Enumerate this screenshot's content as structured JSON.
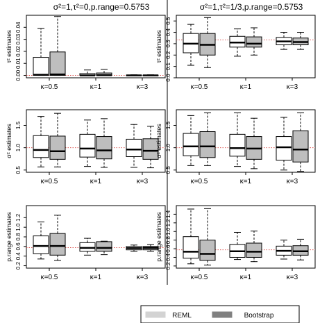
{
  "legend": {
    "position": "bottom",
    "entries": [
      {
        "label": "REML",
        "fill": "#ffffff"
      },
      {
        "label": "Bootstrap",
        "fill": "#bebebe"
      }
    ]
  },
  "colors": {
    "reml_fill": "#ffffff",
    "bootstrap_fill": "#bebebe",
    "true_value_line": "#d9534f",
    "panel_divider": "#000000"
  },
  "columns": [
    {
      "title": "σ²=1,τ²=0,p.range=0.5753"
    },
    {
      "title": "σ²=1,τ²=1/3,p.range=0.5753"
    }
  ],
  "chart_data": [
    {
      "type": "boxplot",
      "column": 0,
      "row": 0,
      "ylabel": "τ² estimates",
      "ylim": [
        -0.002,
        0.05
      ],
      "yticks": [
        0.0,
        0.01,
        0.02,
        0.03,
        0.04
      ],
      "ytick_labels": [
        "0.00",
        "0.01",
        "0.02",
        "0.03",
        "0.04"
      ],
      "true_value": 0.0,
      "categories": [
        "κ=0.5",
        "κ=1",
        "κ=3"
      ],
      "series": [
        {
          "name": "REML",
          "boxes": [
            {
              "whislo": 0.0,
              "q1": 0.0,
              "med": 0.0005,
              "q3": 0.015,
              "whishi": 0.039
            },
            {
              "whislo": 0.0,
              "q1": 0.0,
              "med": 0.0,
              "q3": 0.0015,
              "whishi": 0.0045
            },
            {
              "whislo": 0.0,
              "q1": 0.0,
              "med": 0.0,
              "q3": 0.0002,
              "whishi": 0.0005
            }
          ]
        },
        {
          "name": "Bootstrap",
          "boxes": [
            {
              "whislo": 0.0,
              "q1": 0.0,
              "med": 0.0008,
              "q3": 0.0195,
              "whishi": 0.049
            },
            {
              "whislo": 0.0,
              "q1": 0.0,
              "med": 0.0002,
              "q3": 0.002,
              "whishi": 0.005
            },
            {
              "whislo": 0.0,
              "q1": 0.0,
              "med": 0.0,
              "q3": 0.0002,
              "whishi": 0.0005
            }
          ]
        }
      ]
    },
    {
      "type": "boxplot",
      "column": 1,
      "row": 0,
      "ylabel": "τ² estimates",
      "ylim": [
        0.0,
        0.55
      ],
      "yticks": [
        0.0,
        0.1,
        0.2,
        0.3,
        0.4,
        0.5
      ],
      "ytick_labels": [
        "0.0",
        "0.1",
        "0.2",
        "0.3",
        "0.4",
        "0.5"
      ],
      "true_value": 0.3333,
      "categories": [
        "κ=0.5",
        "κ=1",
        "κ=3"
      ],
      "series": [
        {
          "name": "REML",
          "boxes": [
            {
              "whislo": 0.11,
              "q1": 0.22,
              "med": 0.3,
              "q3": 0.39,
              "whishi": 0.47
            },
            {
              "whislo": 0.19,
              "q1": 0.27,
              "med": 0.31,
              "q3": 0.365,
              "whishi": 0.43
            },
            {
              "whislo": 0.25,
              "q1": 0.29,
              "med": 0.32,
              "q3": 0.355,
              "whishi": 0.4
            }
          ]
        },
        {
          "name": "Bootstrap",
          "boxes": [
            {
              "whislo": 0.09,
              "q1": 0.2,
              "med": 0.29,
              "q3": 0.39,
              "whishi": 0.53
            },
            {
              "whislo": 0.2,
              "q1": 0.27,
              "med": 0.3,
              "q3": 0.36,
              "whishi": 0.44
            },
            {
              "whislo": 0.25,
              "q1": 0.29,
              "med": 0.315,
              "q3": 0.35,
              "whishi": 0.4
            }
          ]
        }
      ]
    },
    {
      "type": "boxplot",
      "column": 0,
      "row": 1,
      "ylabel": "σ² estimates",
      "ylim": [
        0.45,
        1.85
      ],
      "yticks": [
        0.5,
        1.0,
        1.5
      ],
      "ytick_labels": [
        "0.5",
        "1.0",
        "1.5"
      ],
      "true_value": 1.0,
      "categories": [
        "κ=0.5",
        "κ=1",
        "κ=3"
      ],
      "series": [
        {
          "name": "REML",
          "boxes": [
            {
              "whislo": 0.57,
              "q1": 0.78,
              "med": 0.95,
              "q3": 1.27,
              "whishi": 1.7
            },
            {
              "whislo": 0.58,
              "q1": 0.79,
              "med": 0.98,
              "q3": 1.3,
              "whishi": 1.62
            },
            {
              "whislo": 0.56,
              "q1": 0.8,
              "med": 0.96,
              "q3": 1.19,
              "whishi": 1.52
            }
          ]
        },
        {
          "name": "Bootstrap",
          "boxes": [
            {
              "whislo": 0.57,
              "q1": 0.74,
              "med": 0.92,
              "q3": 1.26,
              "whishi": 1.77
            },
            {
              "whislo": 0.56,
              "q1": 0.75,
              "med": 0.94,
              "q3": 1.25,
              "whishi": 1.65
            },
            {
              "whislo": 0.55,
              "q1": 0.74,
              "med": 0.93,
              "q3": 1.2,
              "whishi": 1.48
            }
          ]
        }
      ]
    },
    {
      "type": "boxplot",
      "column": 1,
      "row": 1,
      "ylabel": "σ² estimates",
      "ylim": [
        0.45,
        1.85
      ],
      "yticks": [
        0.5,
        1.0,
        1.5
      ],
      "ytick_labels": [
        "0.5",
        "1.0",
        "1.5"
      ],
      "true_value": 1.0,
      "categories": [
        "κ=0.5",
        "κ=1",
        "κ=3"
      ],
      "series": [
        {
          "name": "REML",
          "boxes": [
            {
              "whislo": 0.6,
              "q1": 0.82,
              "med": 1.03,
              "q3": 1.32,
              "whishi": 1.72
            },
            {
              "whislo": 0.58,
              "q1": 0.81,
              "med": 0.99,
              "q3": 1.3,
              "whishi": 1.78
            },
            {
              "whislo": 0.5,
              "q1": 0.72,
              "med": 1.01,
              "q3": 1.25,
              "whishi": 1.68
            }
          ]
        },
        {
          "name": "Bootstrap",
          "boxes": [
            {
              "whislo": 0.6,
              "q1": 0.78,
              "med": 1.03,
              "q3": 1.36,
              "whishi": 1.78
            },
            {
              "whislo": 0.53,
              "q1": 0.74,
              "med": 0.98,
              "q3": 1.25,
              "whishi": 1.66
            },
            {
              "whislo": 0.47,
              "q1": 0.68,
              "med": 0.96,
              "q3": 1.38,
              "whishi": 1.78
            }
          ]
        }
      ]
    },
    {
      "type": "boxplot",
      "column": 0,
      "row": 2,
      "ylabel": "p.range estimates",
      "ylim": [
        0.15,
        1.45
      ],
      "yticks": [
        0.2,
        0.4,
        0.6,
        0.8,
        1.0,
        1.2
      ],
      "ytick_labels": [
        "0.2",
        "0.4",
        "0.6",
        "0.8",
        "1.0",
        "1.2"
      ],
      "true_value": 0.5753,
      "categories": [
        "κ=0.5",
        "κ=1",
        "κ=3"
      ],
      "series": [
        {
          "name": "REML",
          "boxes": [
            {
              "whislo": 0.34,
              "q1": 0.45,
              "med": 0.61,
              "q3": 0.82,
              "whishi": 1.11
            },
            {
              "whislo": 0.42,
              "q1": 0.5,
              "med": 0.57,
              "q3": 0.68,
              "whishi": 0.77
            },
            {
              "whislo": 0.5,
              "q1": 0.53,
              "med": 0.565,
              "q3": 0.6,
              "whishi": 0.63
            }
          ]
        },
        {
          "name": "Bootstrap",
          "boxes": [
            {
              "whislo": 0.31,
              "q1": 0.42,
              "med": 0.61,
              "q3": 0.87,
              "whishi": 1.25
            },
            {
              "whislo": 0.43,
              "q1": 0.5,
              "med": 0.57,
              "q3": 0.7,
              "whishi": 0.71
            },
            {
              "whislo": 0.5,
              "q1": 0.53,
              "med": 0.57,
              "q3": 0.6,
              "whishi": 0.64
            }
          ]
        }
      ]
    },
    {
      "type": "boxplot",
      "column": 1,
      "row": 2,
      "ylabel": "p.range estimates",
      "ylim": [
        0.15,
        1.6
      ],
      "yticks": [
        0.2,
        0.4,
        0.6,
        0.8,
        1.0,
        1.2,
        1.4
      ],
      "ytick_labels": [
        "0.2",
        "0.4",
        "0.6",
        "0.8",
        "1.0",
        "1.2",
        "1.4"
      ],
      "true_value": 0.5753,
      "categories": [
        "κ=0.5",
        "κ=1",
        "κ=3"
      ],
      "series": [
        {
          "name": "REML",
          "boxes": [
            {
              "whislo": 0.25,
              "q1": 0.38,
              "med": 0.53,
              "q3": 0.88,
              "whishi": 1.52
            },
            {
              "whislo": 0.35,
              "q1": 0.4,
              "med": 0.54,
              "q3": 0.7,
              "whishi": 0.98
            },
            {
              "whislo": 0.36,
              "q1": 0.45,
              "med": 0.55,
              "q3": 0.66,
              "whishi": 0.8
            }
          ]
        },
        {
          "name": "Bootstrap",
          "boxes": [
            {
              "whislo": 0.22,
              "q1": 0.33,
              "med": 0.48,
              "q3": 0.8,
              "whishi": 1.53
            },
            {
              "whislo": 0.3,
              "q1": 0.4,
              "med": 0.53,
              "q3": 0.73,
              "whishi": 1.01
            },
            {
              "whislo": 0.34,
              "q1": 0.45,
              "med": 0.54,
              "q3": 0.67,
              "whishi": 0.82
            }
          ]
        }
      ]
    }
  ]
}
